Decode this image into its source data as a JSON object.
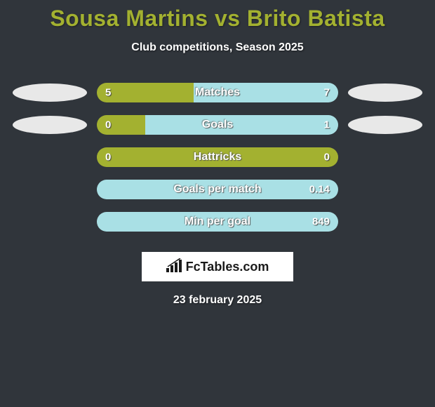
{
  "title": "Sousa Martins vs Brito Batista",
  "subtitle": "Club competitions, Season 2025",
  "date_text": "23 february 2025",
  "logo_text": "FcTables.com",
  "colors": {
    "background": "#30353b",
    "title_color": "#a3b130",
    "left_fill": "#a3b130",
    "right_fill": "#a9e0e5",
    "ellipse": "#e8e8e8"
  },
  "rows": [
    {
      "label": "Matches",
      "left_value": "5",
      "right_value": "7",
      "left_pct": 40,
      "right_pct": 60,
      "show_left_ellipse": true,
      "show_right_ellipse": true,
      "show_left_value": true,
      "show_right_value": true
    },
    {
      "label": "Goals",
      "left_value": "0",
      "right_value": "1",
      "left_pct": 20,
      "right_pct": 80,
      "show_left_ellipse": true,
      "show_right_ellipse": true,
      "show_left_value": true,
      "show_right_value": true
    },
    {
      "label": "Hattricks",
      "left_value": "0",
      "right_value": "0",
      "left_pct": 100,
      "right_pct": 0,
      "show_left_ellipse": false,
      "show_right_ellipse": false,
      "show_left_value": true,
      "show_right_value": true
    },
    {
      "label": "Goals per match",
      "left_value": "",
      "right_value": "0.14",
      "left_pct": 0,
      "right_pct": 100,
      "show_left_ellipse": false,
      "show_right_ellipse": false,
      "show_left_value": false,
      "show_right_value": true
    },
    {
      "label": "Min per goal",
      "left_value": "",
      "right_value": "849",
      "left_pct": 0,
      "right_pct": 100,
      "show_left_ellipse": false,
      "show_right_ellipse": false,
      "show_left_value": false,
      "show_right_value": true
    }
  ]
}
